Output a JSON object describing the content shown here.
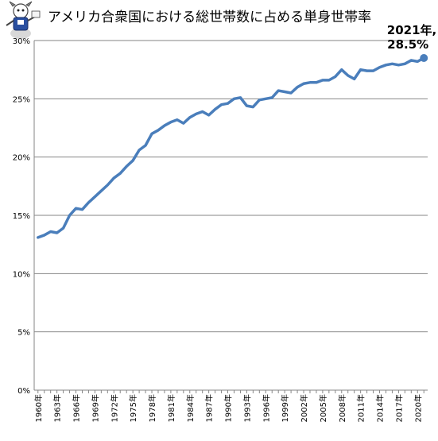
{
  "chart_data": {
    "type": "line",
    "title": "アメリカ合衆国における総世帯数に占める単身世帯率",
    "xlabel": "",
    "ylabel": "",
    "ylim": [
      0,
      30
    ],
    "y_tick_labels": [
      "0%",
      "5%",
      "10%",
      "15%",
      "20%",
      "25%",
      "30%"
    ],
    "y_tick_values": [
      0,
      5,
      10,
      15,
      20,
      25,
      30
    ],
    "x_tick_labels": [
      "1960年",
      "1963年",
      "1966年",
      "1969年",
      "1972年",
      "1975年",
      "1978年",
      "1981年",
      "1984年",
      "1987年",
      "1990年",
      "1993年",
      "1996年",
      "1999年",
      "2002年",
      "2005年",
      "2008年",
      "2011年",
      "2014年",
      "2017年",
      "2020年"
    ],
    "x_tick_years": [
      1960,
      1963,
      1966,
      1969,
      1972,
      1975,
      1978,
      1981,
      1984,
      1987,
      1990,
      1993,
      1996,
      1999,
      2002,
      2005,
      2008,
      2011,
      2014,
      2017,
      2020
    ],
    "gridlines": "horizontal",
    "legend": "none",
    "series": [
      {
        "x": [
          1960,
          1961,
          1962,
          1963,
          1964,
          1965,
          1966,
          1967,
          1968,
          1969,
          1970,
          1971,
          1972,
          1973,
          1974,
          1975,
          1976,
          1977,
          1978,
          1979,
          1980,
          1981,
          1982,
          1983,
          1984,
          1985,
          1986,
          1987,
          1988,
          1989,
          1990,
          1991,
          1992,
          1993,
          1994,
          1995,
          1996,
          1997,
          1998,
          1999,
          2000,
          2001,
          2002,
          2003,
          2004,
          2005,
          2006,
          2007,
          2008,
          2009,
          2010,
          2011,
          2012,
          2013,
          2014,
          2015,
          2016,
          2017,
          2018,
          2019,
          2020,
          2021
        ],
        "values": [
          13.1,
          13.3,
          13.6,
          13.5,
          13.9,
          15.0,
          15.6,
          15.5,
          16.1,
          16.6,
          17.1,
          17.6,
          18.2,
          18.6,
          19.2,
          19.7,
          20.6,
          21.0,
          22.0,
          22.3,
          22.7,
          23.0,
          23.2,
          22.9,
          23.4,
          23.7,
          23.9,
          23.6,
          24.1,
          24.5,
          24.6,
          25.0,
          25.1,
          24.4,
          24.3,
          24.9,
          25.0,
          25.1,
          25.7,
          25.6,
          25.5,
          26.0,
          26.3,
          26.4,
          26.4,
          26.6,
          26.6,
          26.9,
          27.5,
          27.0,
          26.7,
          27.5,
          27.4,
          27.4,
          27.7,
          27.9,
          28.0,
          27.9,
          28.0,
          28.3,
          28.2,
          28.5
        ]
      }
    ],
    "annotation": {
      "line1": "2021年,",
      "line2": "28.5%",
      "year": 2021,
      "value": 28.5
    },
    "colors": {
      "line": "#4a7ebb",
      "grid": "#868686",
      "axis": "#868686",
      "text": "#000000"
    },
    "logo": "mascot-logo"
  }
}
